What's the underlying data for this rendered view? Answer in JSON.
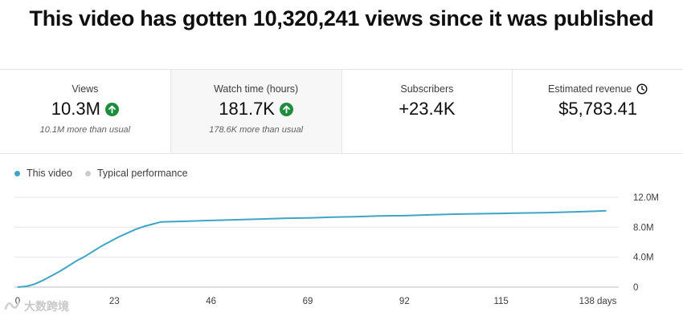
{
  "headline": "This video has gotten 10,320,241 views since it was published",
  "metrics": [
    {
      "label": "Views",
      "value": "10.3M",
      "sub": "10.1M more than usual",
      "trend_icon": "arrow-up-icon"
    },
    {
      "label": "Watch time (hours)",
      "value": "181.7K",
      "sub": "178.6K more than usual",
      "trend_icon": "arrow-up-icon"
    },
    {
      "label": "Subscribers",
      "value": "+23.4K",
      "sub": ""
    },
    {
      "label": "Estimated revenue",
      "value": "$5,783.41",
      "sub": "",
      "label_icon": "clock-icon"
    }
  ],
  "legend": [
    {
      "name": "This video",
      "color": "#3ea6c4"
    },
    {
      "name": "Typical performance",
      "color": "#cccccc"
    }
  ],
  "watermark": "大数跨境",
  "chart_data": {
    "type": "line",
    "xlabel": "",
    "ylabel": "",
    "x_ticks": [
      "0",
      "23",
      "46",
      "69",
      "92",
      "115",
      "138 days"
    ],
    "x_tick_values": [
      0,
      23,
      46,
      69,
      92,
      115,
      138
    ],
    "y_ticks": [
      "0",
      "4.0M",
      "8.0M",
      "12.0M"
    ],
    "y_tick_values": [
      0,
      4000000,
      8000000,
      12000000
    ],
    "xlim": [
      0,
      138
    ],
    "ylim": [
      0,
      12000000
    ],
    "grid": true,
    "legend_position": "top-left",
    "series": [
      {
        "name": "This video",
        "color": "#3ea6c4",
        "x": [
          0,
          2,
          4,
          6,
          8,
          10,
          12,
          14,
          16,
          18,
          20,
          22,
          24,
          26,
          28,
          30,
          32,
          34,
          40,
          46,
          52,
          58,
          64,
          69,
          75,
          80,
          86,
          92,
          98,
          104,
          110,
          115,
          120,
          126,
          132,
          138,
          140
        ],
        "y": [
          0,
          100000,
          400000,
          900000,
          1500000,
          2100000,
          2800000,
          3500000,
          4100000,
          4800000,
          5500000,
          6100000,
          6700000,
          7200000,
          7700000,
          8100000,
          8400000,
          8700000,
          8800000,
          8900000,
          9000000,
          9100000,
          9200000,
          9250000,
          9350000,
          9400000,
          9500000,
          9550000,
          9650000,
          9750000,
          9800000,
          9850000,
          9900000,
          9950000,
          10050000,
          10150000,
          10200000
        ]
      }
    ]
  }
}
